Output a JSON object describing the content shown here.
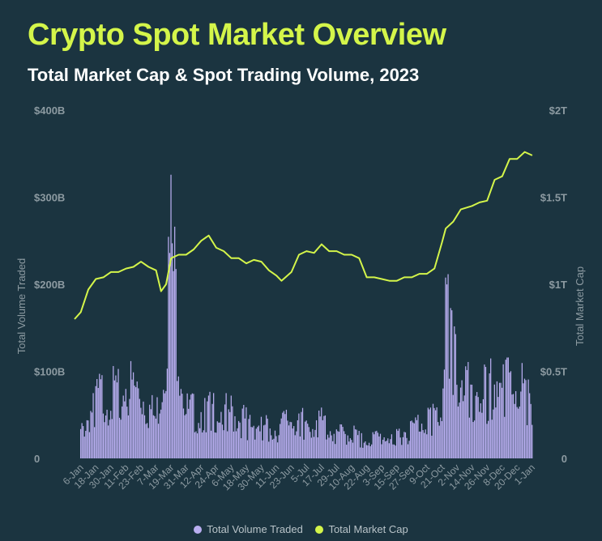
{
  "header": {
    "title": "Crypto Spot Market Overview",
    "subtitle": "Total Market Cap & Spot Trading Volume, 2023"
  },
  "colors": {
    "background": "#1b3440",
    "volume": "#b9aef0",
    "market_cap": "#d4f54a",
    "axis_text": "#8c9aa1"
  },
  "chart_data": {
    "type": "bar",
    "title": "Crypto Spot Market Overview",
    "subtitle": "Total Market Cap & Spot Trading Volume, 2023",
    "ylabel": "Total Volume Traded",
    "y2label": "Total Market Cap",
    "ylim": [
      0,
      400
    ],
    "y2lim": [
      0,
      2
    ],
    "y_ticks": [
      "0",
      "$100B",
      "$200B",
      "$300B",
      "$400B"
    ],
    "y2_ticks": [
      "0",
      "$0.5T",
      "$1T",
      "$1.5T",
      "$2T"
    ],
    "x_ticks": [
      "6-Jan",
      "18-Jan",
      "30-Jan",
      "11-Feb",
      "23-Feb",
      "7-Mar",
      "19-Mar",
      "31-Mar",
      "12-Apr",
      "24-Apr",
      "6-May",
      "18-May",
      "30-May",
      "11-Jun",
      "23-Jun",
      "5-Jul",
      "17-Jul",
      "29-Jul",
      "10-Aug",
      "22-Aug",
      "3-Sep",
      "15-Sep",
      "27-Sep",
      "9-Oct",
      "21-Oct",
      "2-Nov",
      "14-Nov",
      "26-Nov",
      "8-Dec",
      "20-Dec",
      "1-Jan"
    ],
    "legend": [
      "Total Volume Traded",
      "Total Market Cap"
    ],
    "legend_position": "bottom",
    "series": [
      {
        "name": "Total Volume Traded",
        "type": "bar",
        "axis": "left",
        "x": [
          "2023-01-06",
          "2023-01-18",
          "2023-01-30",
          "2023-02-11",
          "2023-02-23",
          "2023-03-07",
          "2023-03-13",
          "2023-03-19",
          "2023-03-31",
          "2023-04-12",
          "2023-04-24",
          "2023-05-06",
          "2023-05-18",
          "2023-05-30",
          "2023-06-11",
          "2023-06-23",
          "2023-07-05",
          "2023-07-17",
          "2023-07-29",
          "2023-08-10",
          "2023-08-22",
          "2023-09-03",
          "2023-09-15",
          "2023-09-27",
          "2023-10-09",
          "2023-10-21",
          "2023-10-24",
          "2023-11-02",
          "2023-11-14",
          "2023-11-26",
          "2023-12-08",
          "2023-12-20",
          "2024-01-01"
        ],
        "values": [
          25,
          62,
          70,
          75,
          68,
          40,
          95,
          220,
          48,
          50,
          52,
          48,
          38,
          35,
          30,
          42,
          38,
          38,
          25,
          26,
          20,
          22,
          26,
          30,
          45,
          45,
          190,
          90,
          72,
          72,
          86,
          78,
          62
        ]
      },
      {
        "name": "Total Market Cap",
        "type": "line",
        "axis": "right",
        "x": [
          "2023-01-01",
          "2023-01-06",
          "2023-01-12",
          "2023-01-18",
          "2023-01-24",
          "2023-01-30",
          "2023-02-05",
          "2023-02-11",
          "2023-02-17",
          "2023-02-23",
          "2023-03-01",
          "2023-03-07",
          "2023-03-11",
          "2023-03-15",
          "2023-03-19",
          "2023-03-25",
          "2023-03-31",
          "2023-04-06",
          "2023-04-12",
          "2023-04-18",
          "2023-04-24",
          "2023-04-30",
          "2023-05-06",
          "2023-05-12",
          "2023-05-18",
          "2023-05-24",
          "2023-05-30",
          "2023-06-05",
          "2023-06-11",
          "2023-06-15",
          "2023-06-23",
          "2023-06-29",
          "2023-07-05",
          "2023-07-11",
          "2023-07-17",
          "2023-07-23",
          "2023-07-29",
          "2023-08-04",
          "2023-08-10",
          "2023-08-16",
          "2023-08-22",
          "2023-08-28",
          "2023-09-03",
          "2023-09-09",
          "2023-09-15",
          "2023-09-21",
          "2023-09-27",
          "2023-10-03",
          "2023-10-09",
          "2023-10-15",
          "2023-10-21",
          "2023-10-24",
          "2023-10-30",
          "2023-11-05",
          "2023-11-14",
          "2023-11-20",
          "2023-11-26",
          "2023-12-02",
          "2023-12-08",
          "2023-12-14",
          "2023-12-20",
          "2023-12-26",
          "2024-01-01"
        ],
        "values": [
          0.8,
          0.84,
          0.97,
          1.03,
          1.04,
          1.07,
          1.07,
          1.09,
          1.1,
          1.13,
          1.1,
          1.08,
          0.96,
          1.0,
          1.15,
          1.17,
          1.17,
          1.2,
          1.25,
          1.28,
          1.21,
          1.19,
          1.15,
          1.15,
          1.12,
          1.14,
          1.13,
          1.08,
          1.05,
          1.02,
          1.07,
          1.17,
          1.19,
          1.18,
          1.23,
          1.19,
          1.19,
          1.17,
          1.17,
          1.15,
          1.04,
          1.04,
          1.03,
          1.02,
          1.02,
          1.04,
          1.04,
          1.06,
          1.06,
          1.09,
          1.24,
          1.32,
          1.36,
          1.43,
          1.45,
          1.47,
          1.48,
          1.6,
          1.62,
          1.72,
          1.72,
          1.76,
          1.74
        ]
      }
    ]
  }
}
